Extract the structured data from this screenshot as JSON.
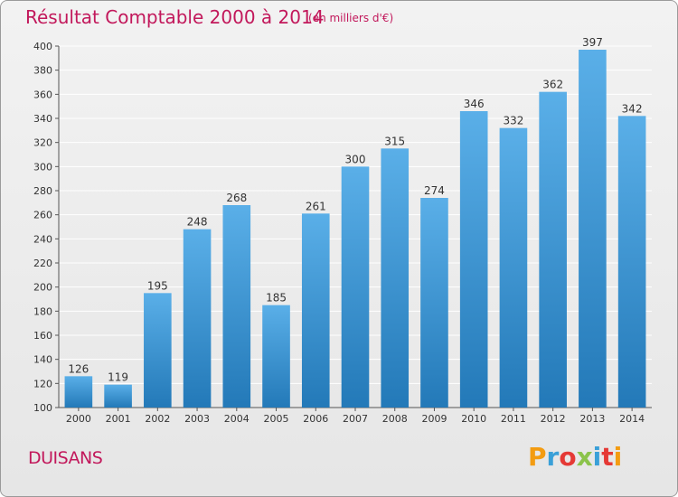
{
  "header": {
    "title": "Résultat Comptable 2000 à 2014",
    "subtitle": "(en milliers d'€)"
  },
  "footer": {
    "city": "DUISANS",
    "logo_text": "Proxiti"
  },
  "colors": {
    "bar_top": "#5aafe8",
    "bar_bottom": "#2379b8",
    "title": "#c2185b",
    "grid": "#ffffff",
    "logo": [
      "#f39c12",
      "#3aa0d8",
      "#e53935",
      "#8bc34a",
      "#3aa0d8",
      "#e53935",
      "#f39c12"
    ]
  },
  "chart_data": {
    "type": "bar",
    "title": "Résultat Comptable 2000 à 2014",
    "categories": [
      "2000",
      "2001",
      "2002",
      "2003",
      "2004",
      "2005",
      "2006",
      "2007",
      "2008",
      "2009",
      "2010",
      "2011",
      "2012",
      "2013",
      "2014"
    ],
    "values": [
      126,
      119,
      195,
      248,
      268,
      185,
      261,
      300,
      315,
      274,
      346,
      332,
      362,
      397,
      342
    ],
    "ylim": [
      100,
      400
    ],
    "yticks": [
      100,
      120,
      140,
      160,
      180,
      200,
      220,
      240,
      260,
      280,
      300,
      320,
      340,
      360,
      380,
      400
    ],
    "grid": true,
    "data_labels": true
  }
}
